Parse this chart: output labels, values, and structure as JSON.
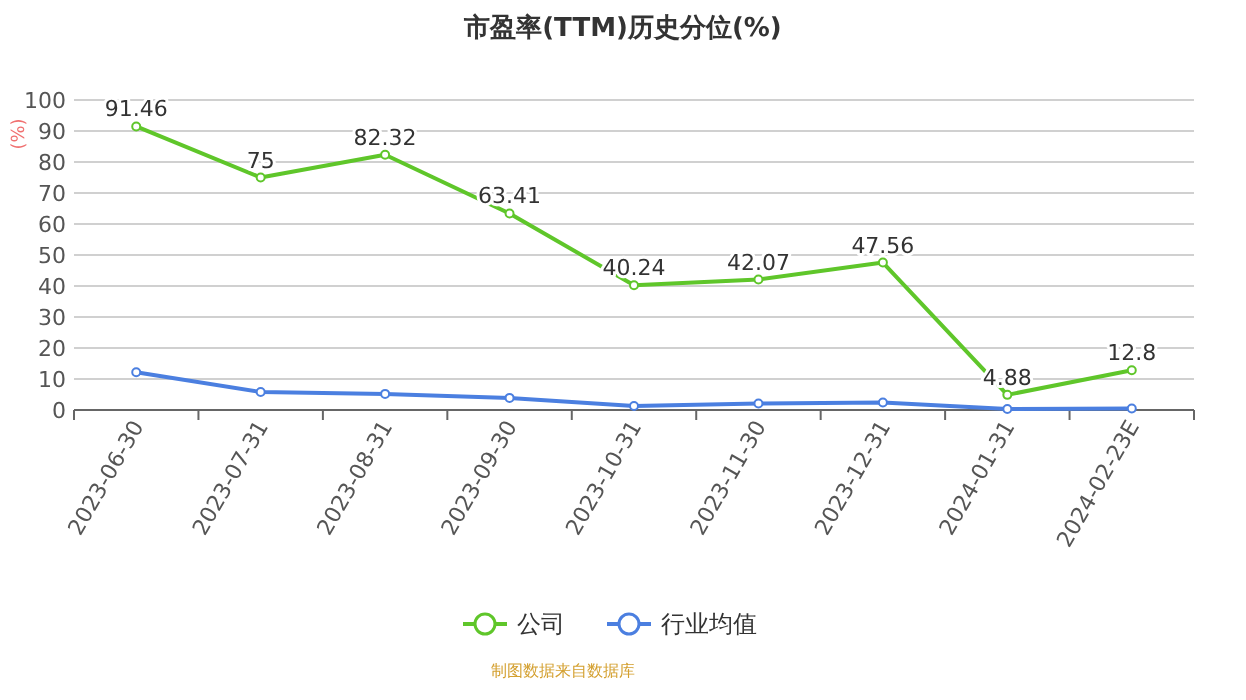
{
  "chart_data": {
    "type": "line",
    "title": "市盈率(TTM)历史分位(%)",
    "ylabel": "(%)",
    "categories": [
      "2023-06-30",
      "2023-07-31",
      "2023-08-31",
      "2023-09-30",
      "2023-10-31",
      "2023-11-30",
      "2023-12-31",
      "2024-01-31",
      "2024-02-23E"
    ],
    "series": [
      {
        "name": "公司",
        "color": "#5fc62a",
        "values": [
          91.46,
          75,
          82.32,
          63.41,
          40.24,
          42.07,
          47.56,
          4.88,
          12.8
        ],
        "value_labels": [
          "91.46",
          "75",
          "82.32",
          "63.41",
          "40.24",
          "42.07",
          "47.56",
          "4.88",
          "12.8"
        ]
      },
      {
        "name": "行业均值",
        "color": "#4b7fe0",
        "values": [
          12.2,
          5.8,
          5.2,
          3.9,
          1.3,
          2.1,
          2.4,
          0.3,
          0.5
        ]
      }
    ],
    "ylim": [
      0,
      100
    ],
    "yticks": [
      0,
      10,
      20,
      30,
      40,
      50,
      60,
      70,
      80,
      90,
      100
    ],
    "grid": "y",
    "legend": "bottom",
    "marker": "circle",
    "annotations": [
      "制图数据来自数据库"
    ]
  }
}
